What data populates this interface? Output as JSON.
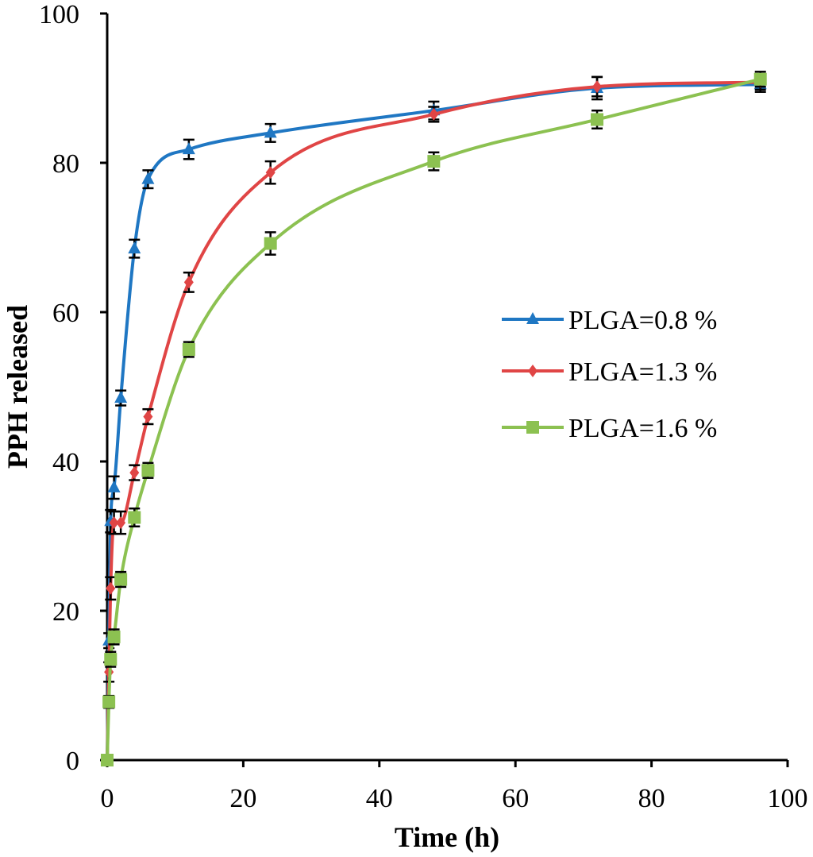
{
  "chart_data": {
    "type": "line",
    "title": "",
    "xlabel": "Time (h)",
    "ylabel": "PPH released",
    "xlim": [
      0,
      100
    ],
    "ylim": [
      0,
      100
    ],
    "xticks": [
      0,
      20,
      40,
      60,
      80,
      100
    ],
    "yticks": [
      0,
      20,
      40,
      60,
      80,
      100
    ],
    "grid": false,
    "legend_position": "right",
    "x": [
      0,
      0.25,
      0.5,
      1,
      2,
      4,
      6,
      12,
      24,
      48,
      72,
      96
    ],
    "series": [
      {
        "name": "PLGA=0.8 %",
        "color": "#1f77c3",
        "marker": "triangle",
        "values": [
          0,
          16,
          32,
          36.5,
          48.5,
          68.5,
          77.8,
          81.8,
          84,
          87,
          90,
          90.5
        ],
        "errors": [
          0,
          1,
          1.5,
          1.5,
          1,
          1.2,
          1.2,
          1.3,
          1.2,
          1.2,
          1.5,
          1
        ]
      },
      {
        "name": "PLGA=1.3 %",
        "color": "#e04545",
        "marker": "diamond",
        "values": [
          0,
          11.8,
          23,
          31.8,
          31.8,
          38.5,
          46,
          64,
          78.7,
          86.5,
          90.2,
          90.8
        ],
        "errors": [
          0,
          1.3,
          1.5,
          1.5,
          1.5,
          1,
          1,
          1.3,
          1.5,
          1,
          1.3,
          1
        ]
      },
      {
        "name": "PLGA=1.6 %",
        "color": "#8cc151",
        "marker": "square",
        "values": [
          0,
          7.8,
          13.5,
          16.5,
          24.2,
          32.5,
          38.8,
          55,
          69.2,
          80.2,
          85.8,
          91.2
        ],
        "errors": [
          0,
          0.8,
          1,
          1,
          1,
          1.2,
          1,
          1,
          1.5,
          1.2,
          1.2,
          1
        ]
      }
    ]
  }
}
